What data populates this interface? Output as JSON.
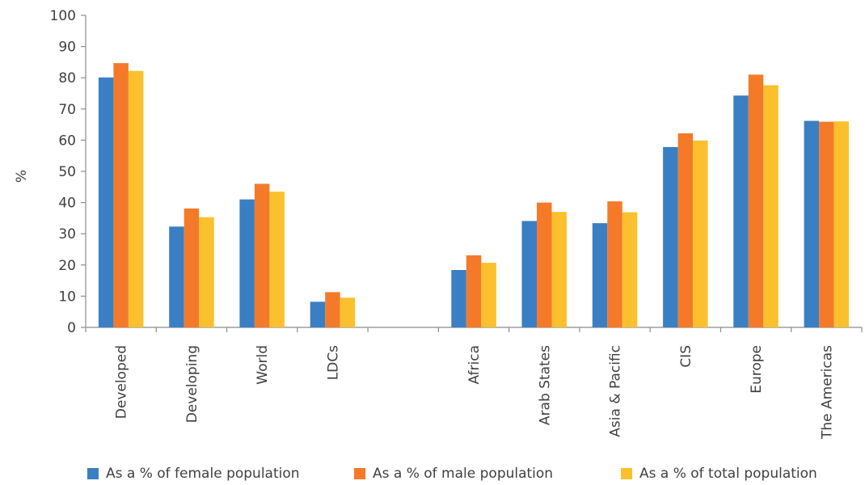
{
  "chart_data": {
    "type": "bar",
    "ylabel": "%",
    "xlabel": "",
    "ylim": [
      0,
      100
    ],
    "yticks": [
      0,
      10,
      20,
      30,
      40,
      50,
      60,
      70,
      80,
      90,
      100
    ],
    "categories": [
      "Developed",
      "Developing",
      "World",
      "LDCs",
      "",
      "Africa",
      "Arab States",
      "Asia & Pacific",
      "CIS",
      "Europe",
      "The Americas"
    ],
    "series": [
      {
        "name": "As a % of female population",
        "color": "#3a7fc4",
        "values": [
          80.1,
          32.3,
          41.0,
          8.2,
          null,
          18.4,
          34.1,
          33.4,
          57.8,
          74.3,
          66.2
        ]
      },
      {
        "name": "As a % of male population",
        "color": "#f47a2a",
        "values": [
          84.7,
          38.1,
          46.0,
          11.3,
          null,
          23.1,
          40.0,
          40.4,
          62.2,
          81.0,
          65.9
        ]
      },
      {
        "name": "As a % of total population",
        "color": "#fbc02d",
        "values": [
          82.2,
          35.3,
          43.5,
          9.5,
          null,
          20.7,
          37.0,
          36.9,
          59.9,
          77.6,
          66.0
        ]
      }
    ],
    "grid": false,
    "legend_position": "bottom"
  }
}
